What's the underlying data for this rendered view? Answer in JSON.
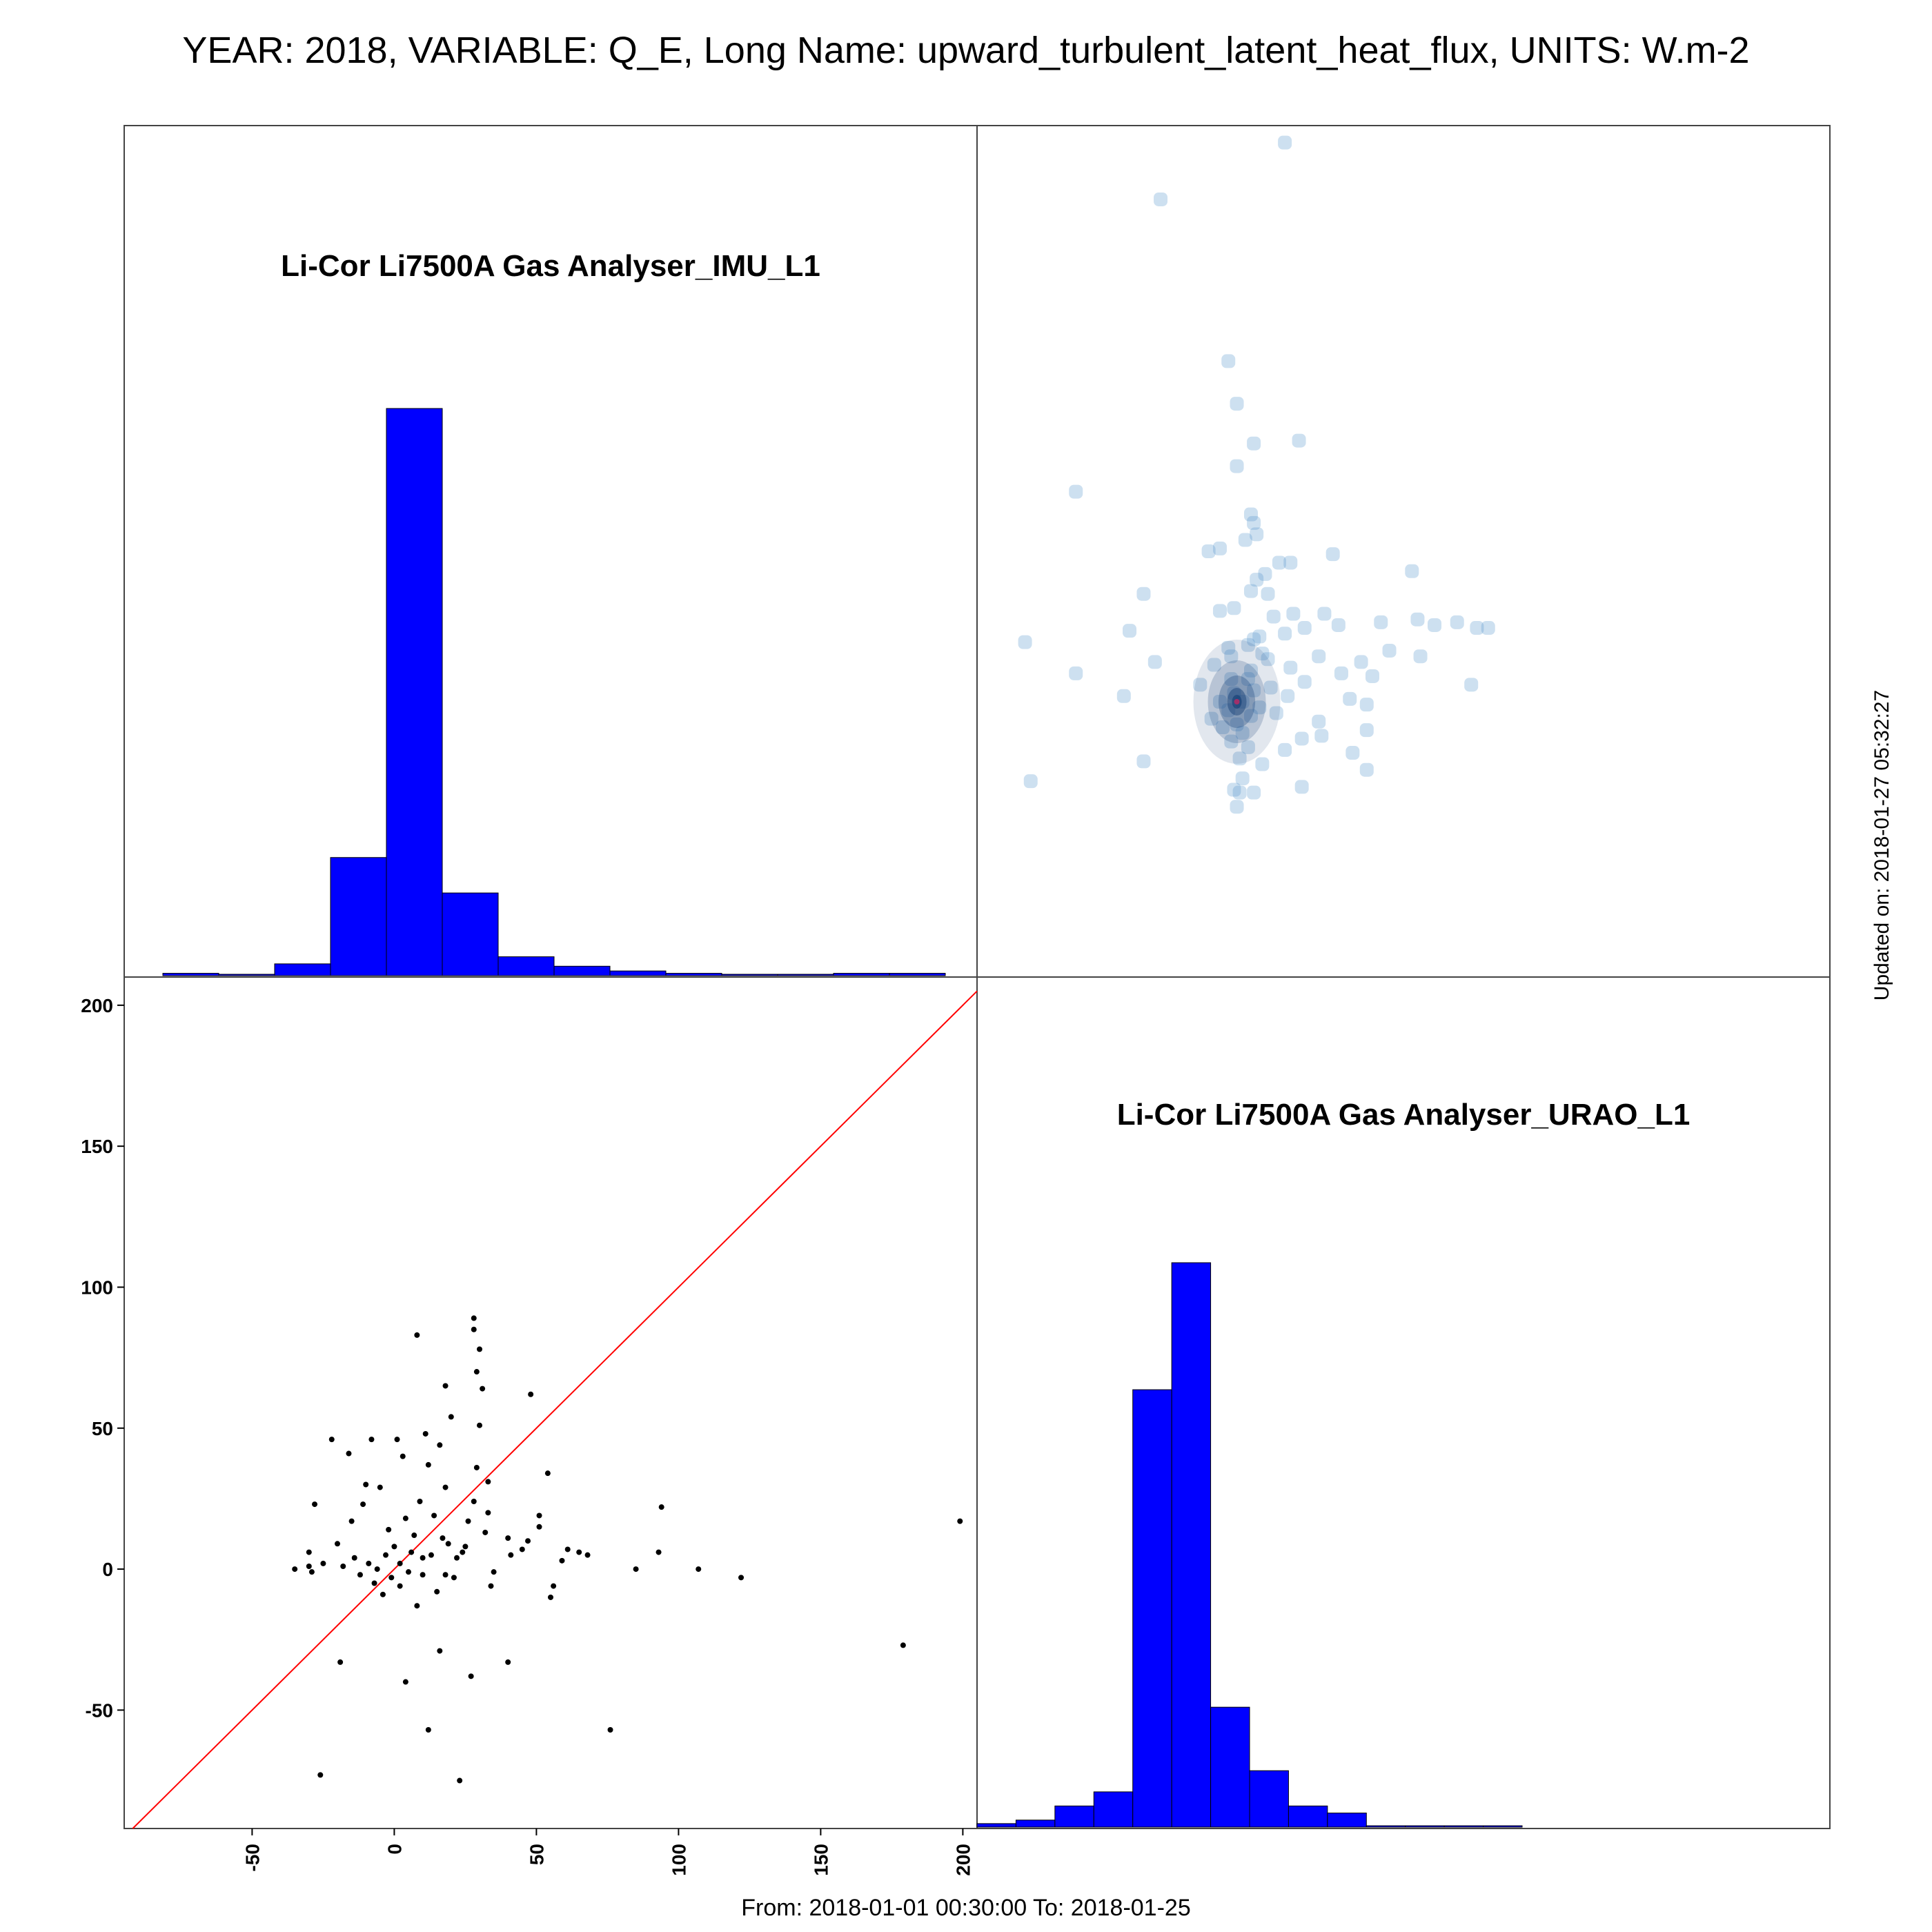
{
  "title": "YEAR: 2018, VARIABLE: Q_E, Long Name: upward_turbulent_latent_heat_flux, UNITS: W.m-2",
  "footer": "From: 2018-01-01 00:30:00 To: 2018-01-25",
  "updated": "Updated on: 2018-01-27 05:32:27",
  "colors": {
    "hist": "#0000ff",
    "diag_line": "#ff0000",
    "points": "#000000",
    "density": "#4a90c8"
  },
  "chart_data": [
    {
      "type": "bar",
      "panel": "top-left histogram",
      "title": "Li-Cor Li7500A Gas Analyser_IMU_L1",
      "bin_edges": [
        -80,
        -60,
        -40,
        -20,
        0,
        20,
        40,
        60,
        80,
        100,
        120,
        140,
        160,
        180,
        200
      ],
      "counts": [
        1,
        0,
        5,
        50,
        240,
        35,
        8,
        4,
        2,
        1,
        0,
        0,
        1,
        1
      ]
    },
    {
      "type": "heatmap",
      "panel": "top-right density scatter",
      "description_x": "Li-Cor Li7500A Gas Analyser_IMU_L1",
      "description_y": "Li-Cor Li7500A Gas Analyser_URAO_L1"
    },
    {
      "type": "scatter",
      "panel": "bottom-left scatter",
      "xlim": [
        -95,
        205
      ],
      "ylim": [
        -92,
        210
      ],
      "x_ticks": [
        -50,
        0,
        50,
        100,
        150,
        200
      ],
      "y_ticks": [
        -50,
        0,
        50,
        100,
        150,
        200
      ],
      "reference_line": "y = x",
      "points": [
        [
          199,
          17
        ],
        [
          179,
          -27
        ],
        [
          122,
          -3
        ],
        [
          107,
          0
        ],
        [
          94,
          22
        ],
        [
          93,
          6
        ],
        [
          85,
          0
        ],
        [
          76,
          -57
        ],
        [
          68,
          5
        ],
        [
          65,
          6
        ],
        [
          61,
          7
        ],
        [
          59,
          3
        ],
        [
          56,
          -6
        ],
        [
          55,
          -10
        ],
        [
          54,
          34
        ],
        [
          51,
          19
        ],
        [
          51,
          15
        ],
        [
          48,
          62
        ],
        [
          47,
          10
        ],
        [
          45,
          7
        ],
        [
          41,
          5
        ],
        [
          40,
          -33
        ],
        [
          40,
          11
        ],
        [
          35,
          -1
        ],
        [
          34,
          -6
        ],
        [
          33,
          31
        ],
        [
          33,
          20
        ],
        [
          32,
          13
        ],
        [
          31,
          64
        ],
        [
          30,
          78
        ],
        [
          30,
          51
        ],
        [
          29,
          70
        ],
        [
          29,
          36
        ],
        [
          28,
          85
        ],
        [
          28,
          89
        ],
        [
          28,
          24
        ],
        [
          27,
          -38
        ],
        [
          26,
          17
        ],
        [
          25,
          8
        ],
        [
          24,
          6
        ],
        [
          23,
          -75
        ],
        [
          22,
          4
        ],
        [
          21,
          -3
        ],
        [
          20,
          54
        ],
        [
          19,
          9
        ],
        [
          18,
          65
        ],
        [
          18,
          29
        ],
        [
          18,
          -2
        ],
        [
          17,
          11
        ],
        [
          16,
          44
        ],
        [
          16,
          -29
        ],
        [
          15,
          -8
        ],
        [
          14,
          19
        ],
        [
          13,
          5
        ],
        [
          12,
          -57
        ],
        [
          12,
          37
        ],
        [
          11,
          48
        ],
        [
          10,
          4
        ],
        [
          10,
          -2
        ],
        [
          9,
          24
        ],
        [
          8,
          83
        ],
        [
          8,
          -13
        ],
        [
          7,
          12
        ],
        [
          6,
          6
        ],
        [
          5,
          -1
        ],
        [
          4,
          -40
        ],
        [
          4,
          18
        ],
        [
          3,
          40
        ],
        [
          2,
          2
        ],
        [
          2,
          -6
        ],
        [
          1,
          46
        ],
        [
          0,
          8
        ],
        [
          -1,
          -3
        ],
        [
          -2,
          14
        ],
        [
          -3,
          5
        ],
        [
          -4,
          -9
        ],
        [
          -5,
          29
        ],
        [
          -6,
          0
        ],
        [
          -7,
          -5
        ],
        [
          -8,
          46
        ],
        [
          -9,
          2
        ],
        [
          -11,
          23
        ],
        [
          -12,
          -2
        ],
        [
          -14,
          4
        ],
        [
          -15,
          17
        ],
        [
          -18,
          1
        ],
        [
          -19,
          -33
        ],
        [
          -20,
          9
        ],
        [
          -22,
          46
        ],
        [
          -26,
          -73
        ],
        [
          -28,
          23
        ],
        [
          -30,
          6
        ],
        [
          -30,
          1
        ],
        [
          -29,
          -1
        ],
        [
          -25,
          2
        ],
        [
          -16,
          41
        ],
        [
          -10,
          30
        ],
        [
          -35,
          0
        ]
      ]
    },
    {
      "type": "bar",
      "panel": "bottom-right histogram",
      "title": "Li-Cor Li7500A Gas Analyser_URAO_L1",
      "bin_edges": [
        -80,
        -60,
        -40,
        -20,
        0,
        20,
        40,
        60,
        80,
        100,
        120,
        140,
        160,
        180,
        200
      ],
      "counts": [
        1,
        2,
        6,
        10,
        124,
        160,
        34,
        16,
        6,
        4,
        0,
        0,
        0,
        0
      ]
    }
  ]
}
